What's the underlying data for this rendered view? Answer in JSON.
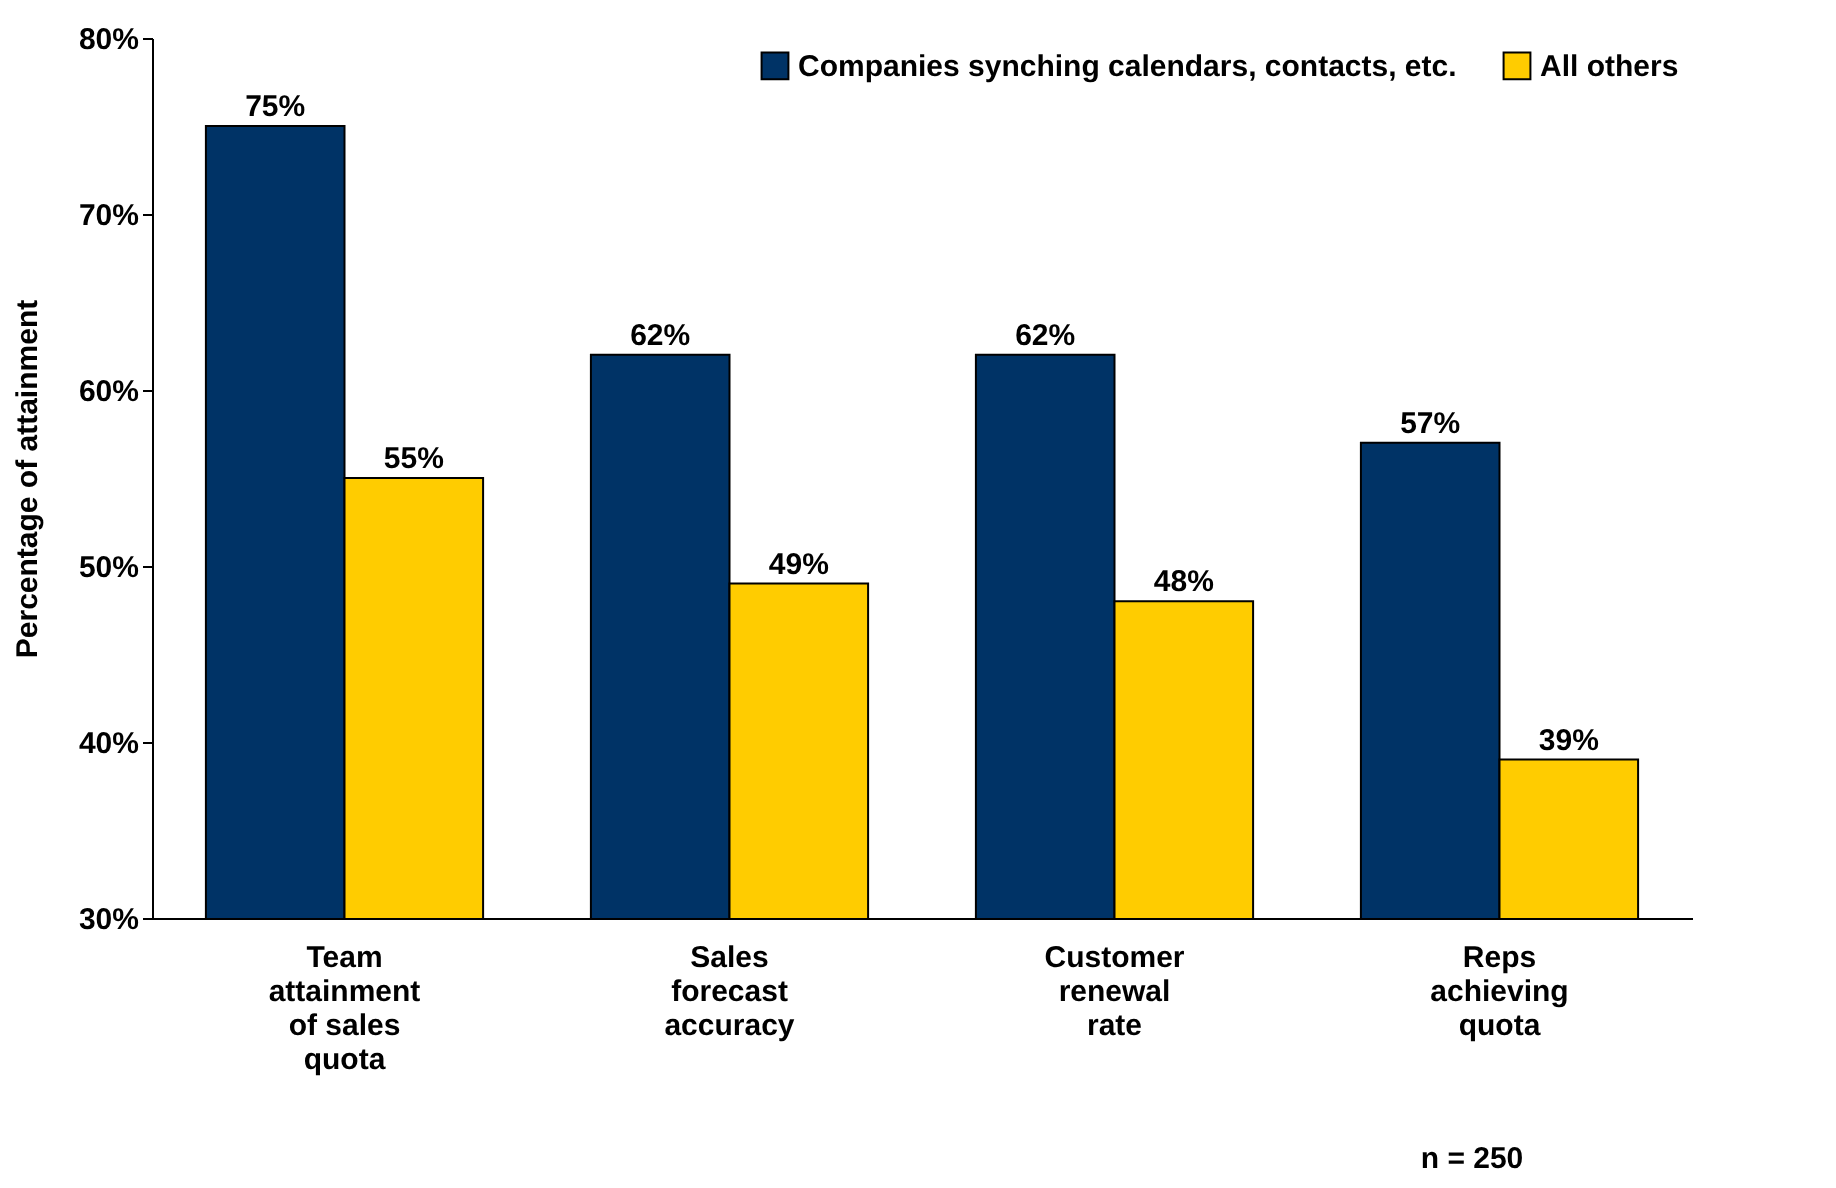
{
  "chart_data": {
    "type": "bar",
    "ylabel": "Percentage of attainment",
    "categories": [
      "Team\nattainment\nof sales\nquota",
      "Sales\nforecast\naccuracy",
      "Customer\nrenewal\nrate",
      "Reps\nachieving\nquota"
    ],
    "series": [
      {
        "name": "Companies synching calendars, contacts, etc.",
        "color": "#003366",
        "values": [
          75,
          62,
          62,
          57
        ],
        "value_labels": [
          "75%",
          "62%",
          "62%",
          "57%"
        ]
      },
      {
        "name": "All others",
        "color": "#ffcc00",
        "values": [
          55,
          49,
          48,
          39
        ],
        "value_labels": [
          "55%",
          "49%",
          "48%",
          "39%"
        ]
      }
    ],
    "ylim": [
      30,
      80
    ],
    "yticks": [
      {
        "value": 30,
        "label": "30%"
      },
      {
        "value": 40,
        "label": "40%"
      },
      {
        "value": 50,
        "label": "50%"
      },
      {
        "value": 60,
        "label": "60%"
      },
      {
        "value": 70,
        "label": "70%"
      },
      {
        "value": 80,
        "label": "80%"
      }
    ],
    "grid": false,
    "legend": "top right",
    "annotations": [
      "n = 250"
    ]
  }
}
